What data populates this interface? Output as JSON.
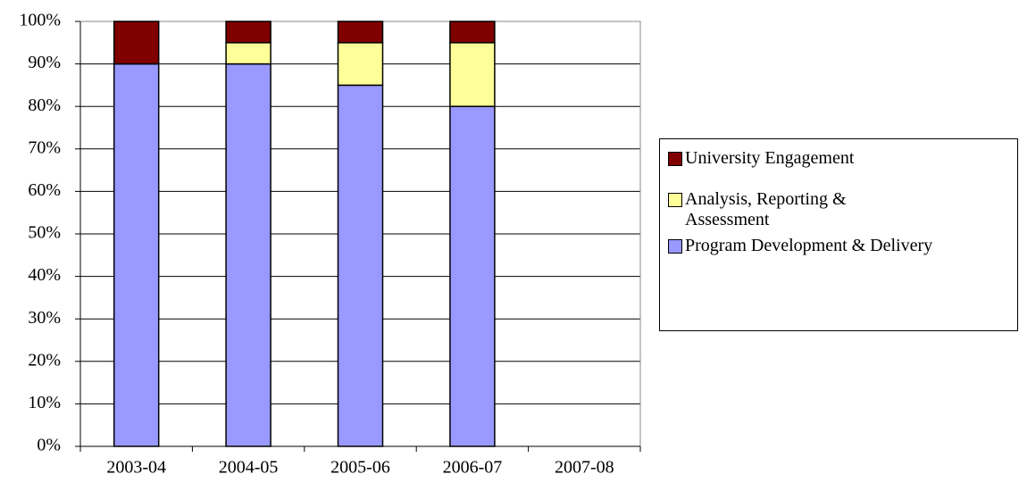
{
  "chart_data": {
    "type": "stacked_bar",
    "categories": [
      "2003-04",
      "2004-05",
      "2005-06",
      "2006-07",
      "2007-08"
    ],
    "series": [
      {
        "name": "Program Development & Delivery",
        "color": "#9999ff",
        "values": [
          90,
          90,
          85,
          80,
          null
        ]
      },
      {
        "name": "Analysis, Reporting & Assessment",
        "color": "#ffff99",
        "values": [
          0,
          5,
          10,
          15,
          null
        ]
      },
      {
        "name": "University Engagement",
        "color": "#800000",
        "values": [
          10,
          5,
          5,
          5,
          null
        ]
      }
    ],
    "ylim": [
      0,
      100
    ],
    "yticks": [
      {
        "value": 0,
        "label": "0%"
      },
      {
        "value": 10,
        "label": "10%"
      },
      {
        "value": 20,
        "label": "20%"
      },
      {
        "value": 30,
        "label": "30%"
      },
      {
        "value": 40,
        "label": "40%"
      },
      {
        "value": 50,
        "label": "50%"
      },
      {
        "value": 60,
        "label": "60%"
      },
      {
        "value": 70,
        "label": "70%"
      },
      {
        "value": 80,
        "label": "80%"
      },
      {
        "value": 90,
        "label": "90%"
      },
      {
        "value": 100,
        "label": "100%"
      }
    ],
    "grid": true,
    "legend": "right"
  }
}
